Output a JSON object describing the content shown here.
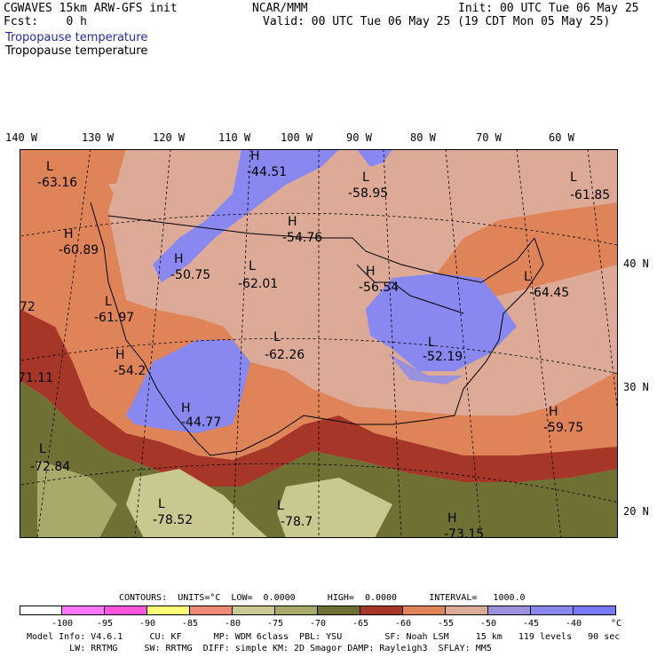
{
  "header": {
    "model_title": "CGWAVES 15km ARW-GFS init",
    "fcst": "Fcst:    0 h",
    "org": "NCAR/MMM",
    "init": "Init: 00 UTC Tue 06 May 25",
    "valid": "Valid: 00 UTC Tue 06 May 25 (19 CDT Mon 05 May 25)",
    "field_title_1": "Tropopause temperature",
    "field_title_2": "Tropopause temperature"
  },
  "map": {
    "lon_labels": [
      "140 W",
      "130 W",
      "120 W",
      "110 W",
      "100 W",
      "90 W",
      "80 W",
      "70 W",
      "60 W"
    ],
    "lat_labels": [
      "40 N",
      "30 N",
      "20 N"
    ],
    "markers": [
      {
        "type": "L",
        "value": "-63.16"
      },
      {
        "type": "H",
        "value": "-44.51"
      },
      {
        "type": "L",
        "value": "-58.95"
      },
      {
        "type": "L",
        "value": "-61.85"
      },
      {
        "type": "H",
        "value": "-60.89"
      },
      {
        "type": "H",
        "value": "-54.76"
      },
      {
        "type": "H",
        "value": "-50.75"
      },
      {
        "type": "L",
        "value": "-62.01"
      },
      {
        "type": "H",
        "value": "-56.54"
      },
      {
        "type": "L",
        "value": "-64.45"
      },
      {
        "type": "L",
        "value": "-61.97"
      },
      {
        "type": "L",
        "value": "-62.26"
      },
      {
        "type": "H",
        "value": "-54.2"
      },
      {
        "type": "L",
        "value": "-52.19"
      },
      {
        "type": "H",
        "value": "-44.77"
      },
      {
        "type": "H",
        "value": "-59.75"
      },
      {
        "type": "L",
        "value": "-72.84"
      },
      {
        "type": "L",
        "value": "-78.52"
      },
      {
        "type": "L",
        "value": "-78.7"
      },
      {
        "type": "H",
        "value": "-73.15"
      },
      {
        "type": "",
        "value": "72"
      },
      {
        "type": "",
        "value": "71.11"
      }
    ]
  },
  "contours_line": "CONTOURS:  UNITS=°C  LOW=  0.0000      HIGH=  0.0000      INTERVAL=   1000.0",
  "legend": {
    "colors": [
      "#ffffff",
      "#ff77ff",
      "#ff55dd",
      "#ffff77",
      "#f08878",
      "#c8c890",
      "#a8aa6a",
      "#6e7034",
      "#a53628",
      "#df8458",
      "#ddaa98",
      "#9a90dd",
      "#8888f0",
      "#7878ff"
    ],
    "ticks": [
      "-100",
      "-95",
      "-90",
      "-85",
      "-80",
      "-75",
      "-70",
      "-65",
      "-60",
      "-55",
      "-50",
      "-45",
      "-40",
      "°C"
    ]
  },
  "footer": {
    "line1": "Model Info: V4.6.1     CU: KF      MP: WDM 6class  PBL: YSU        SF: Noah LSM     15 km   119 levels   90 sec",
    "line2": "        LW: RRTMG     SW: RRTMG  DIFF: simple KM: 2D Smagor DAMP: Rayleigh3  SFLAY: MM5"
  }
}
